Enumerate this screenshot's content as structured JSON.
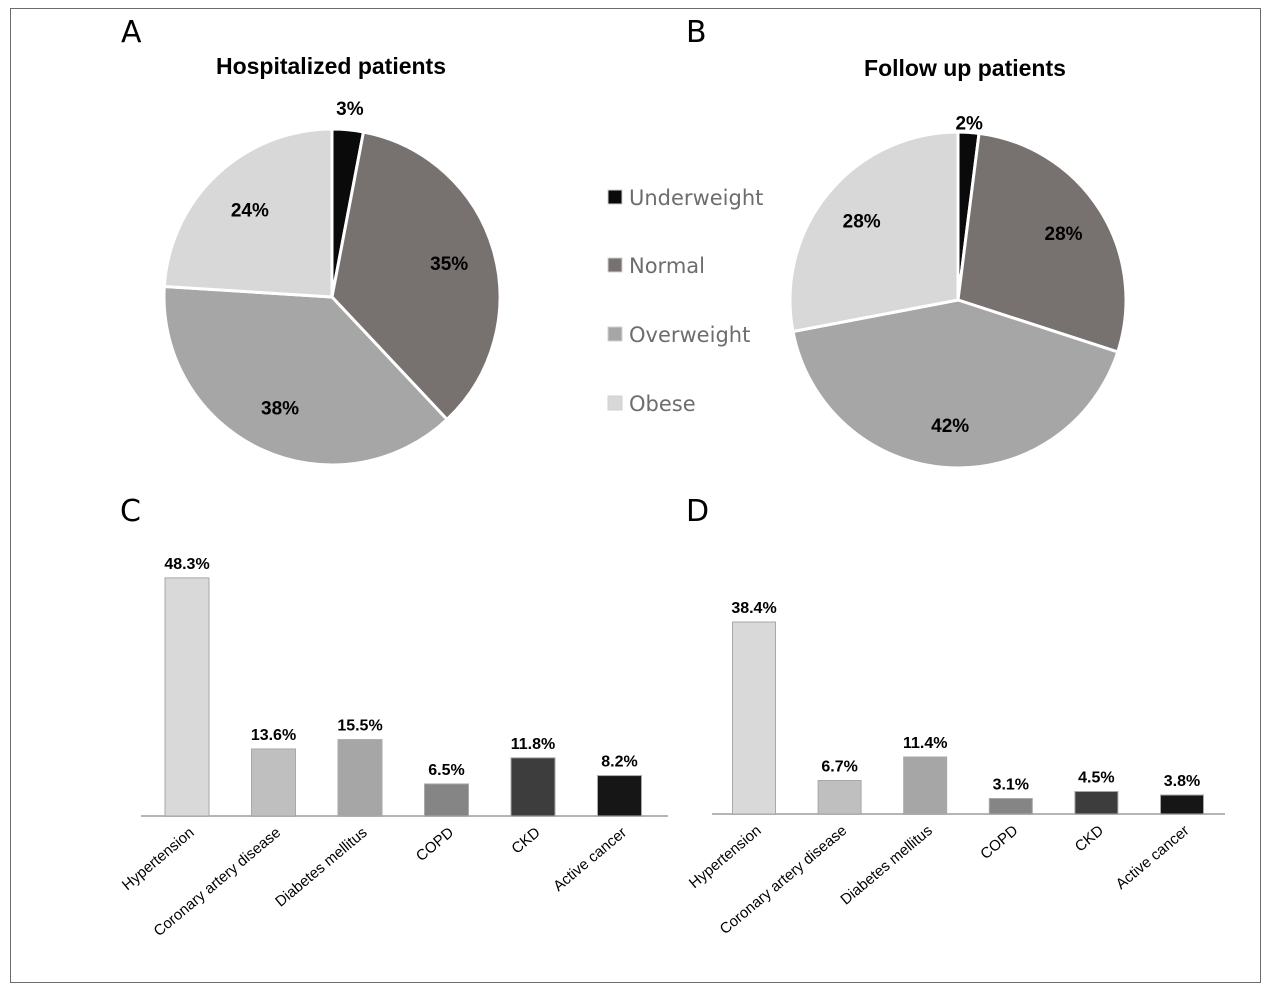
{
  "panels": [
    "A",
    "B",
    "C",
    "D"
  ],
  "legend": [
    {
      "label": "Underweight",
      "color": "#0a0a0a"
    },
    {
      "label": "Normal",
      "color": "#77716f"
    },
    {
      "label": "Overweight",
      "color": "#a6a6a6"
    },
    {
      "label": "Obese",
      "color": "#d8d8d8"
    }
  ],
  "chart_data": [
    {
      "panel": "A",
      "type": "pie",
      "title": "Hospitalized patients",
      "labels": [
        "Underweight",
        "Normal",
        "Overweight",
        "Obese"
      ],
      "values": [
        3,
        35,
        38,
        24
      ],
      "value_labels": [
        "3%",
        "35%",
        "38%",
        "24%"
      ]
    },
    {
      "panel": "B",
      "type": "pie",
      "title": "Follow up patients",
      "labels": [
        "Underweight",
        "Normal",
        "Overweight",
        "Obese"
      ],
      "values": [
        2,
        28,
        42,
        28
      ],
      "value_labels": [
        "2%",
        "28%",
        "42%",
        "28%"
      ]
    },
    {
      "panel": "C",
      "type": "bar",
      "categories": [
        "Hypertension",
        "Coronary artery disease",
        "Diabetes mellitus",
        "COPD",
        "CKD",
        "Active cancer"
      ],
      "values": [
        48.3,
        13.6,
        15.5,
        6.5,
        11.8,
        8.2
      ],
      "value_labels": [
        "48.3%",
        "13.6%",
        "15.5%",
        "6.5%",
        "11.8%",
        "8.2%"
      ],
      "colors": [
        "#d9d9d9",
        "#bfbfbf",
        "#a6a6a6",
        "#858585",
        "#3d3d3d",
        "#161616"
      ]
    },
    {
      "panel": "D",
      "type": "bar",
      "categories": [
        "Hypertension",
        "Coronary artery disease",
        "Diabetes mellitus",
        "COPD",
        "CKD",
        "Active cancer"
      ],
      "values": [
        38.4,
        6.7,
        11.4,
        3.1,
        4.5,
        3.8
      ],
      "value_labels": [
        "38.4%",
        "6.7%",
        "11.4%",
        "3.1%",
        "4.5%",
        "3.8%"
      ],
      "colors": [
        "#d9d9d9",
        "#bfbfbf",
        "#a6a6a6",
        "#858585",
        "#3d3d3d",
        "#161616"
      ]
    }
  ]
}
